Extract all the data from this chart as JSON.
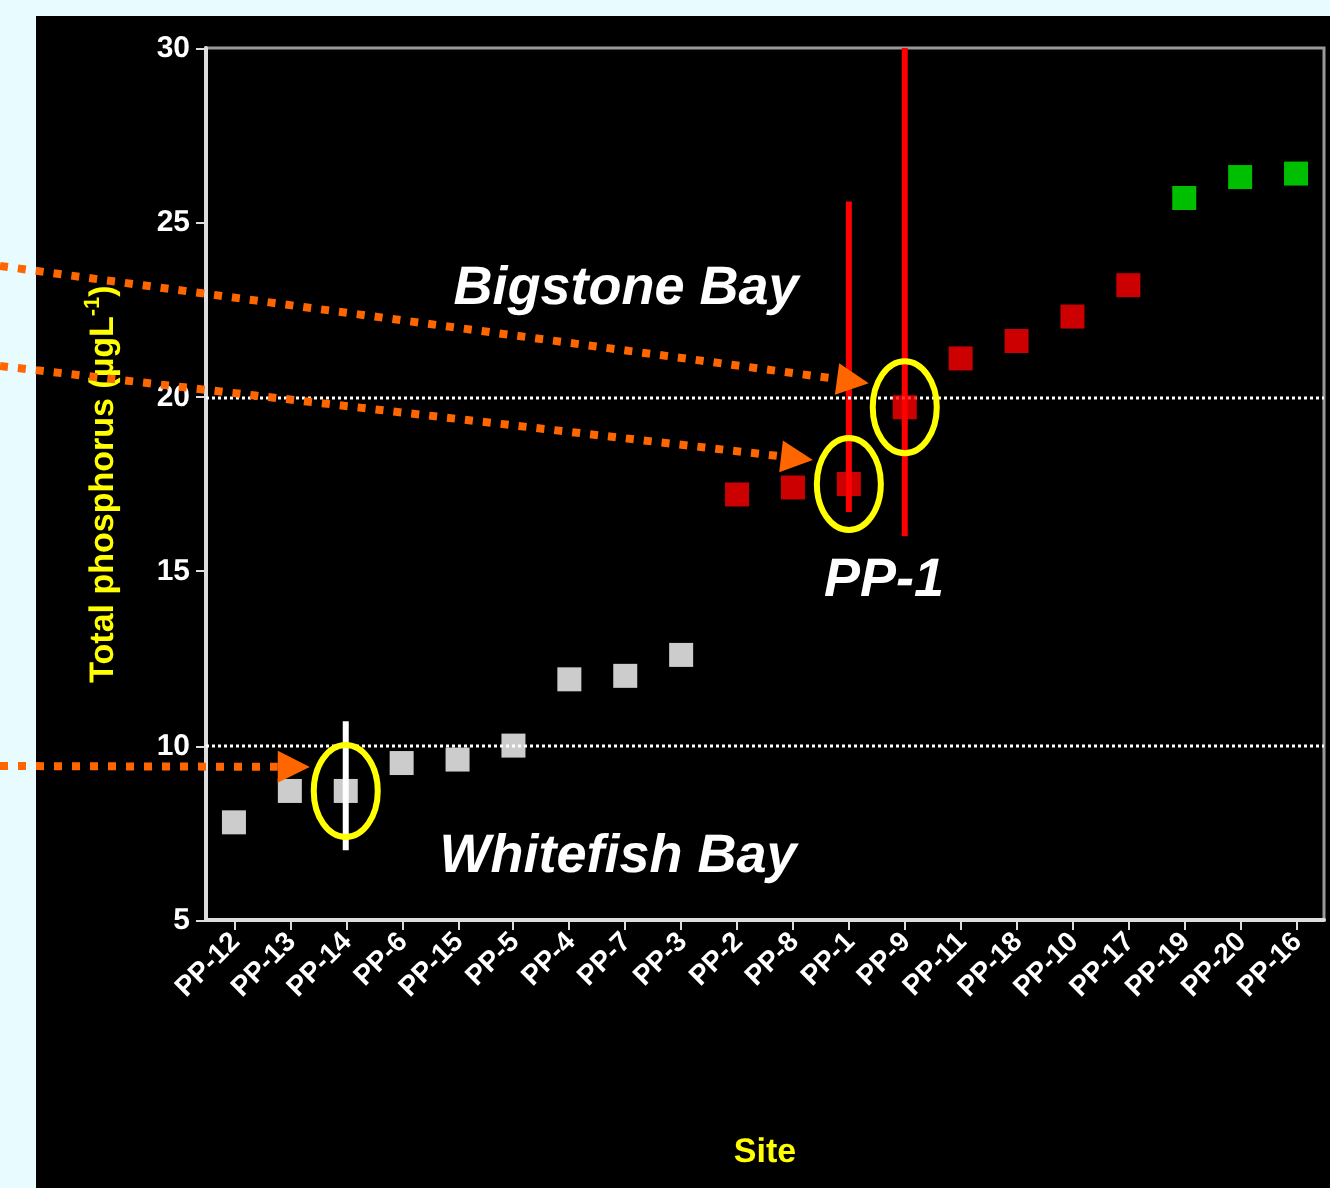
{
  "chart_data": {
    "type": "scatter",
    "xlabel": "Site",
    "ylabel": "Total phosphorus (µgL$^{-1}$)",
    "categories": [
      "PP-12",
      "PP-13",
      "PP-14",
      "PP-6",
      "PP-15",
      "PP-5",
      "PP-4",
      "PP-7",
      "PP-3",
      "PP-2",
      "PP-8",
      "PP-1",
      "PP-9",
      "PP-11",
      "PP-18",
      "PP-10",
      "PP-17",
      "PP-19",
      "PP-20",
      "PP-16"
    ],
    "values": [
      7.8,
      8.7,
      8.7,
      9.5,
      9.6,
      10.0,
      11.9,
      12.0,
      12.6,
      17.2,
      17.4,
      17.5,
      19.7,
      21.1,
      21.6,
      22.3,
      23.2,
      25.7,
      26.3,
      26.4
    ],
    "colors": [
      "#ffffff",
      "#ffffff",
      "#ffffff",
      "#ffffff",
      "#ffffff",
      "#ffffff",
      "#ffffff",
      "#ffffff",
      "#ffffff",
      "#ff0000",
      "#ff0000",
      "#ff0000",
      "#ff0000",
      "#ff0000",
      "#ff0000",
      "#ff0000",
      "#ff0000",
      "#00ee00",
      "#00ee00",
      "#00ee00"
    ],
    "errors": [
      null,
      null,
      [
        7.0,
        10.7
      ],
      null,
      null,
      null,
      null,
      null,
      null,
      null,
      null,
      [
        16.7,
        25.6
      ],
      [
        16.0,
        30
      ],
      null,
      null,
      null,
      null,
      null,
      null,
      null
    ],
    "ylim": [
      5,
      30
    ],
    "yticks": [
      5,
      10,
      15,
      20,
      25,
      30
    ],
    "grid": false,
    "marker": "square",
    "ref_lines": [
      {
        "axis": "y",
        "value": 10,
        "color": "#ffffff",
        "line_style": "dotted"
      },
      {
        "axis": "y",
        "value": 20,
        "color": "#ffffff",
        "line_style": "dotted"
      }
    ],
    "annotations": [
      "Bigstone Bay",
      "PP-1",
      "Whitefish Bay"
    ]
  }
}
